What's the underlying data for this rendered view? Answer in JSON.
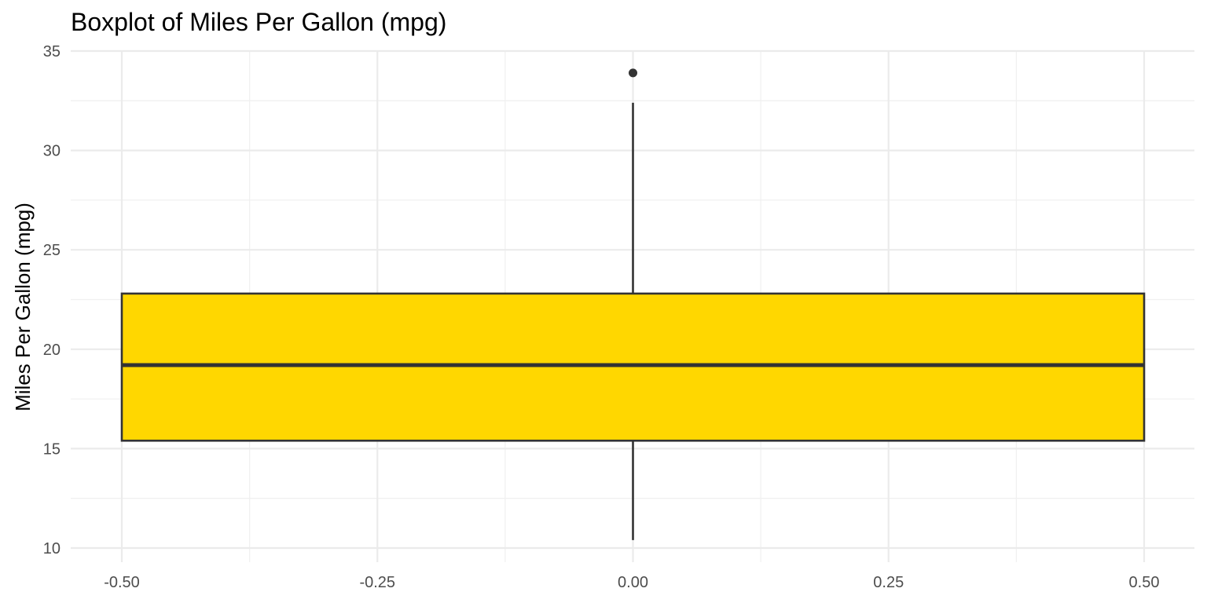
{
  "chart_data": {
    "type": "boxplot",
    "title": "Boxplot of Miles Per Gallon (mpg)",
    "xlabel": "",
    "ylabel": "Miles Per Gallon (mpg)",
    "xlim": [
      -0.5,
      0.5
    ],
    "ylim": [
      10,
      35
    ],
    "xticks": [
      -0.5,
      -0.25,
      0.0,
      0.25,
      0.5
    ],
    "xtick_labels": [
      "-0.50",
      "-0.25",
      "0.00",
      "0.25",
      "0.50"
    ],
    "yticks": [
      10,
      15,
      20,
      25,
      30,
      35
    ],
    "ytick_labels": [
      "10",
      "15",
      "20",
      "25",
      "30",
      "35"
    ],
    "grid": true,
    "box": {
      "x_center": 0.0,
      "x_min": -0.5,
      "x_max": 0.5,
      "lower_whisker": 10.4,
      "q1": 15.4,
      "median": 19.2,
      "q3": 22.8,
      "upper_whisker": 32.4,
      "outliers": [
        33.9
      ]
    },
    "fill_color": "#FFD700",
    "line_color": "#333333"
  }
}
